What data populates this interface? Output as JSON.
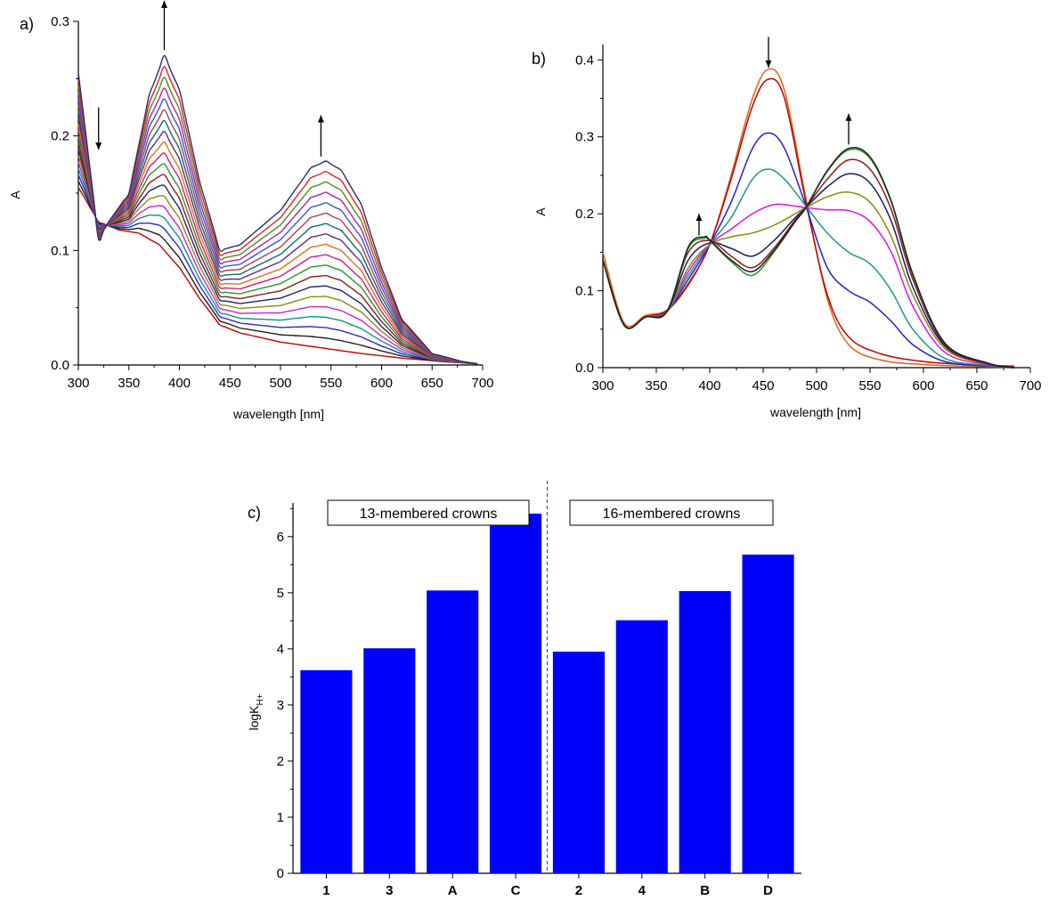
{
  "chart_data": [
    {
      "panel": "a)",
      "type": "line",
      "xlabel": "wavelength [nm]",
      "ylabel": "A",
      "xlim": [
        300,
        700
      ],
      "ylim": [
        0,
        0.3
      ],
      "xticks": [
        "300",
        "350",
        "400",
        "450",
        "500",
        "550",
        "600",
        "650",
        "700"
      ],
      "yticks": [
        "0.0",
        "0.1",
        "0.2",
        "0.3"
      ],
      "n_spectra": 19,
      "first_spectrum": {
        "x": [
          300,
          320,
          340,
          360,
          380,
          400,
          420,
          440,
          460,
          500,
          540,
          580,
          620,
          660,
          695
        ],
        "y": [
          0.155,
          0.125,
          0.118,
          0.115,
          0.105,
          0.085,
          0.058,
          0.035,
          0.028,
          0.02,
          0.015,
          0.01,
          0.006,
          0.003,
          0.001
        ]
      },
      "last_spectrum": {
        "x": [
          300,
          320,
          330,
          350,
          370,
          385,
          400,
          420,
          440,
          460,
          500,
          530,
          545,
          560,
          580,
          600,
          620,
          650,
          680,
          695
        ],
        "y": [
          0.255,
          0.11,
          0.125,
          0.15,
          0.235,
          0.27,
          0.24,
          0.16,
          0.1,
          0.105,
          0.135,
          0.172,
          0.178,
          0.17,
          0.14,
          0.085,
          0.04,
          0.01,
          0.003,
          0.001
        ]
      },
      "arrows": [
        {
          "x": 320,
          "direction": "down"
        },
        {
          "x": 385,
          "direction": "up"
        },
        {
          "x": 540,
          "direction": "up"
        }
      ],
      "line_colors": [
        "#c00000",
        "#1f1f1f",
        "#2a2ad0",
        "#12908a",
        "#d020d0",
        "#8a8a10",
        "#202070",
        "#8b1a1a",
        "#229922",
        "#d4187a",
        "#e07010",
        "#5a2a8a",
        "#0b6b6b",
        "#b04040",
        "#3355dd",
        "#aa22aa",
        "#558822",
        "#dd2222",
        "#2b2b6b"
      ]
    },
    {
      "panel": "b)",
      "type": "line",
      "xlabel": "wavelength [nm]",
      "ylabel": "A",
      "xlim": [
        300,
        700
      ],
      "ylim": [
        0,
        0.42
      ],
      "xticks": [
        "300",
        "350",
        "400",
        "450",
        "500",
        "550",
        "600",
        "650",
        "700"
      ],
      "yticks": [
        "0.0",
        "0.1",
        "0.2",
        "0.3",
        "0.4"
      ],
      "isosbestic_points": [
        [
          335,
          0.068
        ],
        [
          403,
          0.16
        ],
        [
          490,
          0.208
        ]
      ],
      "arrows": [
        {
          "x": 390,
          "direction": "up"
        },
        {
          "x": 455,
          "direction": "down"
        },
        {
          "x": 530,
          "direction": "up"
        }
      ],
      "series": [
        {
          "color": "#e06010",
          "x": [
            300,
            320,
            340,
            360,
            380,
            400,
            420,
            440,
            455,
            470,
            490,
            510,
            530,
            560,
            600,
            640,
            685
          ],
          "y": [
            0.15,
            0.058,
            0.068,
            0.075,
            0.11,
            0.16,
            0.25,
            0.35,
            0.388,
            0.36,
            0.22,
            0.09,
            0.03,
            0.01,
            0.004,
            0.002,
            0.0
          ]
        },
        {
          "color": "#c00000",
          "x": [
            300,
            320,
            340,
            360,
            380,
            400,
            420,
            440,
            455,
            470,
            490,
            510,
            530,
            560,
            600,
            640,
            685
          ],
          "y": [
            0.14,
            0.055,
            0.066,
            0.074,
            0.108,
            0.16,
            0.245,
            0.34,
            0.375,
            0.35,
            0.215,
            0.095,
            0.04,
            0.018,
            0.008,
            0.004,
            0.002
          ]
        },
        {
          "color": "#2222cc",
          "x": [
            300,
            320,
            340,
            360,
            380,
            400,
            420,
            440,
            455,
            470,
            490,
            510,
            530,
            550,
            570,
            590,
            620,
            660,
            685
          ],
          "y": [
            0.14,
            0.055,
            0.066,
            0.073,
            0.115,
            0.16,
            0.215,
            0.285,
            0.305,
            0.285,
            0.21,
            0.13,
            0.1,
            0.085,
            0.06,
            0.03,
            0.008,
            0.002,
            0.0
          ]
        },
        {
          "color": "#169a8a",
          "x": [
            300,
            320,
            340,
            360,
            380,
            400,
            420,
            440,
            455,
            470,
            490,
            510,
            530,
            550,
            570,
            590,
            620,
            660,
            685
          ],
          "y": [
            0.14,
            0.055,
            0.066,
            0.073,
            0.12,
            0.16,
            0.195,
            0.245,
            0.258,
            0.245,
            0.21,
            0.175,
            0.15,
            0.135,
            0.1,
            0.05,
            0.012,
            0.003,
            0.0
          ]
        },
        {
          "color": "#e010e0",
          "x": [
            300,
            320,
            340,
            360,
            380,
            400,
            420,
            440,
            460,
            480,
            490,
            510,
            530,
            550,
            570,
            590,
            620,
            660,
            685
          ],
          "y": [
            0.14,
            0.055,
            0.066,
            0.073,
            0.125,
            0.16,
            0.18,
            0.2,
            0.212,
            0.21,
            0.208,
            0.205,
            0.204,
            0.19,
            0.15,
            0.08,
            0.02,
            0.004,
            0.0
          ]
        },
        {
          "color": "#8a8a10",
          "x": [
            300,
            320,
            340,
            360,
            380,
            400,
            420,
            440,
            460,
            480,
            490,
            510,
            530,
            550,
            570,
            590,
            620,
            660,
            685
          ],
          "y": [
            0.14,
            0.055,
            0.066,
            0.073,
            0.13,
            0.16,
            0.17,
            0.175,
            0.185,
            0.2,
            0.208,
            0.222,
            0.228,
            0.215,
            0.17,
            0.095,
            0.025,
            0.005,
            0.0
          ]
        },
        {
          "color": "#1a1a6a",
          "x": [
            300,
            320,
            340,
            360,
            380,
            400,
            420,
            440,
            460,
            480,
            490,
            510,
            530,
            550,
            570,
            590,
            620,
            660,
            685
          ],
          "y": [
            0.14,
            0.055,
            0.066,
            0.073,
            0.14,
            0.162,
            0.155,
            0.145,
            0.165,
            0.195,
            0.208,
            0.235,
            0.252,
            0.24,
            0.19,
            0.105,
            0.028,
            0.005,
            0.0
          ]
        },
        {
          "color": "#8b1a1a",
          "x": [
            300,
            320,
            340,
            360,
            380,
            400,
            420,
            440,
            460,
            480,
            490,
            510,
            530,
            550,
            570,
            590,
            620,
            660,
            685
          ],
          "y": [
            0.14,
            0.055,
            0.066,
            0.073,
            0.15,
            0.165,
            0.145,
            0.13,
            0.155,
            0.192,
            0.208,
            0.245,
            0.27,
            0.258,
            0.205,
            0.115,
            0.03,
            0.005,
            0.0
          ]
        },
        {
          "color": "#229922",
          "x": [
            300,
            320,
            340,
            360,
            380,
            395,
            400,
            420,
            440,
            460,
            480,
            490,
            510,
            530,
            550,
            570,
            590,
            620,
            660,
            685
          ],
          "y": [
            0.14,
            0.055,
            0.066,
            0.073,
            0.155,
            0.168,
            0.165,
            0.138,
            0.12,
            0.15,
            0.19,
            0.208,
            0.255,
            0.283,
            0.272,
            0.215,
            0.12,
            0.032,
            0.006,
            0.0
          ]
        },
        {
          "color": "#202020",
          "x": [
            300,
            320,
            340,
            360,
            380,
            395,
            400,
            420,
            440,
            460,
            480,
            490,
            510,
            530,
            550,
            570,
            590,
            620,
            660,
            685
          ],
          "y": [
            0.14,
            0.055,
            0.066,
            0.073,
            0.157,
            0.17,
            0.166,
            0.14,
            0.125,
            0.152,
            0.19,
            0.208,
            0.256,
            0.285,
            0.274,
            0.216,
            0.122,
            0.032,
            0.006,
            0.0
          ]
        }
      ]
    },
    {
      "panel": "c)",
      "type": "bar",
      "ylabel": "logK",
      "ylabel_sub": "H+",
      "ylim": [
        0,
        6.6
      ],
      "yticks": [
        "0",
        "1",
        "2",
        "3",
        "4",
        "5",
        "6"
      ],
      "categories": [
        "1",
        "3",
        "A",
        "C",
        "2",
        "4",
        "B",
        "D"
      ],
      "values": [
        3.62,
        4.01,
        5.04,
        6.41,
        3.95,
        4.51,
        5.03,
        5.68
      ],
      "bar_color": "#0000ff",
      "divider_color": "#4455cc",
      "groups": [
        {
          "label": "13-membered crowns",
          "categories": [
            "1",
            "3",
            "A",
            "C"
          ]
        },
        {
          "label": "16-membered crowns",
          "categories": [
            "2",
            "4",
            "B",
            "D"
          ]
        }
      ]
    }
  ]
}
